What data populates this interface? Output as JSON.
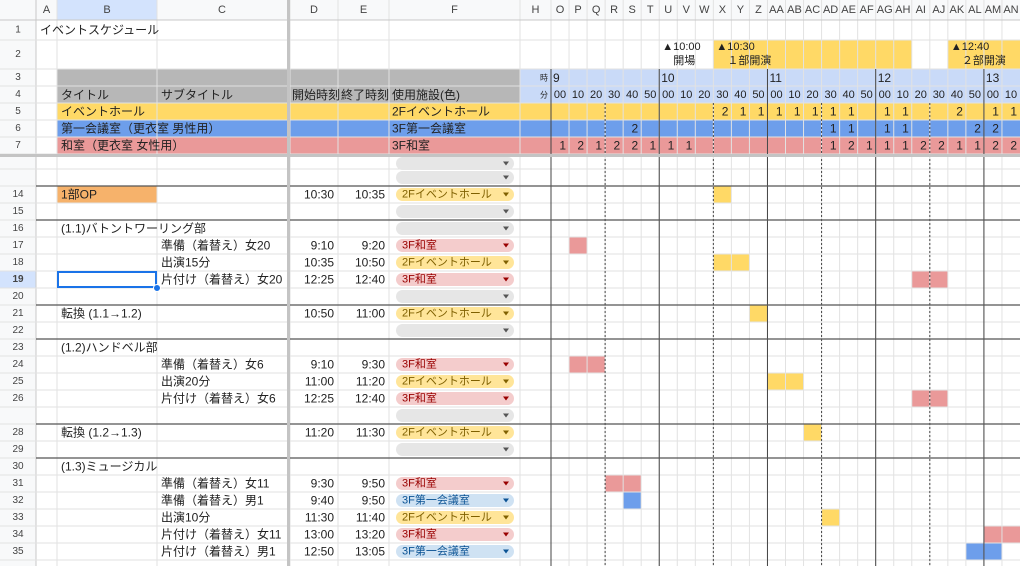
{
  "columns": [
    "A",
    "B",
    "C",
    "D",
    "E",
    "F",
    "H",
    "O",
    "P",
    "Q",
    "R",
    "S",
    "T",
    "U",
    "V",
    "W",
    "X",
    "Y",
    "Z",
    "AA",
    "AB",
    "AC",
    "AD",
    "AE",
    "AF",
    "AG",
    "AH",
    "AI",
    "AJ",
    "AK",
    "AL",
    "AM",
    "AN"
  ],
  "frozen_rows": [
    1,
    2,
    3,
    4,
    5,
    6,
    7
  ],
  "title": "イベントスケジュール",
  "milestones": [
    {
      "time": "▲10:00",
      "label": "開場"
    },
    {
      "time": "▲10:30",
      "label": "１部開演",
      "color": "#ffd966"
    },
    {
      "time": "▲12:40",
      "label": "２部開演",
      "color": "#ffd966"
    }
  ],
  "timeline": {
    "hour_label": "時",
    "minute_label": "分",
    "hours": [
      9,
      null,
      null,
      null,
      null,
      null,
      10,
      null,
      null,
      null,
      null,
      null,
      11,
      null,
      null,
      null,
      null,
      null,
      12,
      null,
      null,
      null,
      null,
      null,
      13,
      null
    ],
    "minutes": [
      "00",
      "10",
      "20",
      "30",
      "40",
      "50",
      "00",
      "10",
      "20",
      "30",
      "40",
      "50",
      "00",
      "10",
      "20",
      "30",
      "40",
      "50",
      "00",
      "10",
      "20",
      "30",
      "40",
      "50",
      "00",
      "10"
    ]
  },
  "headers": {
    "title": "タイトル",
    "subtitle": "サブタイトル",
    "start": "開始時刻",
    "end": "終了時刻",
    "facility": "使用施設(色)"
  },
  "facilities": [
    {
      "name": "イベントホール",
      "room": "2Fイベントホール",
      "color": "#ffd966",
      "chip_color": "#ffe599",
      "chip_text": "#7f6000",
      "counts": [
        null,
        null,
        null,
        null,
        null,
        null,
        null,
        null,
        null,
        2,
        1,
        1,
        1,
        1,
        1,
        1,
        1,
        null,
        1,
        1,
        null,
        null,
        2,
        null,
        1,
        1
      ]
    },
    {
      "name": "第一会議室（更衣室 男性用）",
      "room": "3F第一会議室",
      "color": "#6d9eeb",
      "chip_color": "#cfe2f3",
      "chip_text": "#0b5394",
      "counts": [
        null,
        null,
        null,
        null,
        2,
        null,
        null,
        null,
        null,
        null,
        null,
        null,
        null,
        null,
        null,
        1,
        1,
        null,
        1,
        1,
        null,
        null,
        null,
        2,
        2,
        null
      ]
    },
    {
      "name": "和室（更衣室 女性用）",
      "room": "3F和室",
      "color": "#ea9999",
      "chip_color": "#f4cccc",
      "chip_text": "#990000",
      "counts": [
        1,
        2,
        1,
        2,
        2,
        1,
        1,
        1,
        null,
        null,
        null,
        null,
        null,
        null,
        null,
        1,
        2,
        1,
        1,
        1,
        2,
        2,
        1,
        1,
        2,
        2
      ]
    }
  ],
  "rows": [
    {
      "num": null,
      "facility": null
    },
    {
      "num": null,
      "facility": null
    },
    {
      "num": 14,
      "title": "1部OP",
      "title_color": "#f6b26b",
      "start": "10:30",
      "end": "10:35",
      "facility": "2Fイベントホール"
    },
    {
      "num": 15,
      "facility": null
    },
    {
      "num": 16,
      "title": "(1.1)バトントワーリング部",
      "facility": null
    },
    {
      "num": 17,
      "subtitle": "準備（着替え）女20",
      "start": "9:10",
      "end": "9:20",
      "facility": "3F和室"
    },
    {
      "num": 18,
      "subtitle": "出演15分",
      "start": "10:35",
      "end": "10:50",
      "facility": "2Fイベントホール"
    },
    {
      "num": 19,
      "subtitle": "片付け（着替え）女20",
      "start": "12:25",
      "end": "12:40",
      "facility": "3F和室"
    },
    {
      "num": 20,
      "facility": null
    },
    {
      "num": 21,
      "title": "転換 (1.1→1.2)",
      "start": "10:50",
      "end": "11:00",
      "facility": "2Fイベントホール"
    },
    {
      "num": 22,
      "facility": null
    },
    {
      "num": 23,
      "title": "(1.2)ハンドベル部"
    },
    {
      "num": 24,
      "subtitle": "準備（着替え）女6",
      "start": "9:10",
      "end": "9:30",
      "facility": "3F和室"
    },
    {
      "num": 25,
      "subtitle": "出演20分",
      "start": "11:00",
      "end": "11:20",
      "facility": "2Fイベントホール"
    },
    {
      "num": 26,
      "subtitle": "片付け（着替え）女6",
      "start": "12:25",
      "end": "12:40",
      "facility": "3F和室"
    },
    {
      "num": null,
      "facility": null
    },
    {
      "num": 28,
      "title": "転換 (1.2→1.3)",
      "start": "11:20",
      "end": "11:30",
      "facility": "2Fイベントホール"
    },
    {
      "num": 29,
      "facility": null
    },
    {
      "num": 30,
      "title": "(1.3)ミュージカル"
    },
    {
      "num": 31,
      "subtitle": "準備（着替え）女11",
      "start": "9:30",
      "end": "9:50",
      "facility": "3F和室"
    },
    {
      "num": 32,
      "subtitle": "準備（着替え）男1",
      "start": "9:40",
      "end": "9:50",
      "facility": "3F第一会議室"
    },
    {
      "num": 33,
      "subtitle": "出演10分",
      "start": "11:30",
      "end": "11:40",
      "facility": "2Fイベントホール"
    },
    {
      "num": 34,
      "subtitle": "片付け（着替え）女11",
      "start": "13:00",
      "end": "13:20",
      "facility": "3F和室"
    },
    {
      "num": 35,
      "subtitle": "片付け（着替え）男1",
      "start": "12:50",
      "end": "13:05",
      "facility": "3F第一会議室"
    }
  ]
}
